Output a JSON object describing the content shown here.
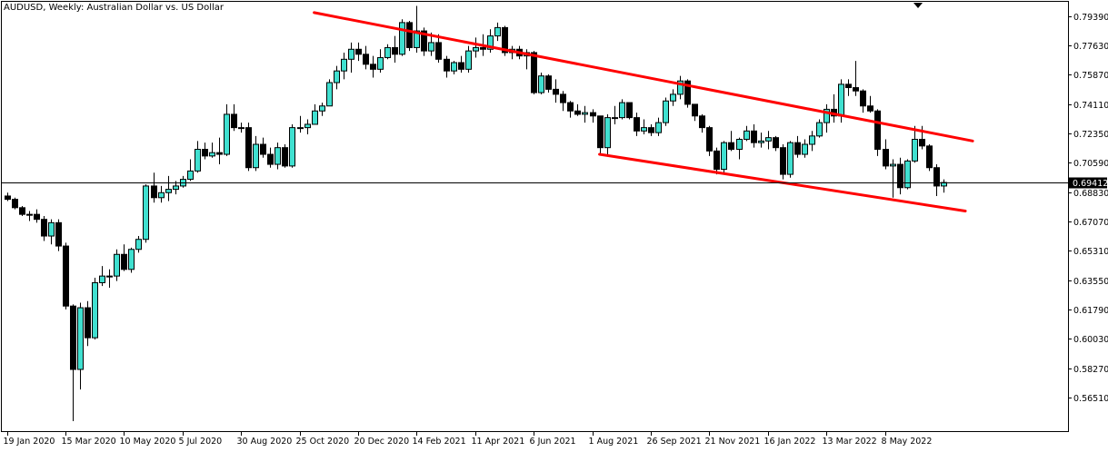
{
  "title": "AUDUSD, Weekly:  Australian Dollar vs. US Dollar",
  "current_price_label": "0.69412",
  "colors": {
    "bull_fill": "#40E0D0",
    "bear_fill": "#000000",
    "candle_outline": "#000000",
    "trendline": "#FF0000",
    "background": "#FFFFFF",
    "axis": "#000000"
  },
  "chart_data": {
    "type": "candlestick",
    "title": "AUDUSD, Weekly:  Australian Dollar vs. US Dollar",
    "xlabel": "",
    "ylabel": "",
    "ylim": [
      0.545,
      0.803
    ],
    "y_ticks": [
      "0.79390",
      "0.77630",
      "0.75870",
      "0.74110",
      "0.72350",
      "0.70590",
      "0.68830",
      "0.67070",
      "0.65310",
      "0.63550",
      "0.61790",
      "0.60030",
      "0.58270",
      "0.56510"
    ],
    "x_tick_labels": [
      {
        "label": "19 Jan 2020",
        "week": 0
      },
      {
        "label": "15 Mar 2020",
        "week": 8
      },
      {
        "label": "10 May 2020",
        "week": 16
      },
      {
        "label": "5 Jul 2020",
        "week": 24
      },
      {
        "label": "30 Aug 2020",
        "week": 32
      },
      {
        "label": "25 Oct 2020",
        "week": 40
      },
      {
        "label": "20 Dec 2020",
        "week": 48
      },
      {
        "label": "14 Feb 2021",
        "week": 56
      },
      {
        "label": "11 Apr 2021",
        "week": 64
      },
      {
        "label": "6 Jun 2021",
        "week": 72
      },
      {
        "label": "1 Aug 2021",
        "week": 80
      },
      {
        "label": "26 Sep 2021",
        "week": 88
      },
      {
        "label": "21 Nov 2021",
        "week": 96
      },
      {
        "label": "16 Jan 2022",
        "week": 104
      },
      {
        "label": "13 Mar 2022",
        "week": 112
      },
      {
        "label": "8 May 2022",
        "week": 120
      }
    ],
    "current_price": 0.69412,
    "ohlc": [
      [
        0.686,
        0.688,
        0.683,
        0.684
      ],
      [
        0.684,
        0.685,
        0.678,
        0.679
      ],
      [
        0.679,
        0.68,
        0.674,
        0.675
      ],
      [
        0.675,
        0.677,
        0.671,
        0.675
      ],
      [
        0.675,
        0.678,
        0.67,
        0.672
      ],
      [
        0.672,
        0.674,
        0.659,
        0.662
      ],
      [
        0.662,
        0.672,
        0.657,
        0.67
      ],
      [
        0.67,
        0.672,
        0.653,
        0.656
      ],
      [
        0.656,
        0.658,
        0.618,
        0.62
      ],
      [
        0.62,
        0.621,
        0.551,
        0.582
      ],
      [
        0.582,
        0.622,
        0.57,
        0.619
      ],
      [
        0.619,
        0.623,
        0.596,
        0.601
      ],
      [
        0.601,
        0.637,
        0.6,
        0.634
      ],
      [
        0.634,
        0.644,
        0.632,
        0.638
      ],
      [
        0.638,
        0.642,
        0.631,
        0.638
      ],
      [
        0.638,
        0.654,
        0.635,
        0.651
      ],
      [
        0.651,
        0.657,
        0.641,
        0.642
      ],
      [
        0.642,
        0.655,
        0.64,
        0.654
      ],
      [
        0.654,
        0.662,
        0.652,
        0.66
      ],
      [
        0.66,
        0.693,
        0.658,
        0.692
      ],
      [
        0.692,
        0.7,
        0.682,
        0.685
      ],
      [
        0.685,
        0.692,
        0.682,
        0.688
      ],
      [
        0.688,
        0.698,
        0.683,
        0.69
      ],
      [
        0.69,
        0.695,
        0.687,
        0.692
      ],
      [
        0.692,
        0.698,
        0.691,
        0.696
      ],
      [
        0.696,
        0.708,
        0.695,
        0.701
      ],
      [
        0.701,
        0.719,
        0.7,
        0.714
      ],
      [
        0.714,
        0.718,
        0.708,
        0.71
      ],
      [
        0.71,
        0.718,
        0.709,
        0.712
      ],
      [
        0.712,
        0.721,
        0.705,
        0.711
      ],
      [
        0.711,
        0.741,
        0.71,
        0.735
      ],
      [
        0.735,
        0.741,
        0.725,
        0.727
      ],
      [
        0.727,
        0.73,
        0.724,
        0.727
      ],
      [
        0.727,
        0.73,
        0.701,
        0.703
      ],
      [
        0.703,
        0.722,
        0.701,
        0.717
      ],
      [
        0.717,
        0.721,
        0.709,
        0.711
      ],
      [
        0.711,
        0.715,
        0.703,
        0.705
      ],
      [
        0.705,
        0.718,
        0.702,
        0.715
      ],
      [
        0.715,
        0.717,
        0.703,
        0.704
      ],
      [
        0.704,
        0.729,
        0.703,
        0.727
      ],
      [
        0.727,
        0.734,
        0.724,
        0.727
      ],
      [
        0.727,
        0.732,
        0.723,
        0.729
      ],
      [
        0.729,
        0.741,
        0.729,
        0.737
      ],
      [
        0.737,
        0.742,
        0.734,
        0.74
      ],
      [
        0.74,
        0.756,
        0.74,
        0.754
      ],
      [
        0.754,
        0.764,
        0.75,
        0.761
      ],
      [
        0.761,
        0.772,
        0.756,
        0.768
      ],
      [
        0.768,
        0.778,
        0.76,
        0.774
      ],
      [
        0.774,
        0.778,
        0.767,
        0.771
      ],
      [
        0.771,
        0.776,
        0.762,
        0.765
      ],
      [
        0.765,
        0.77,
        0.757,
        0.762
      ],
      [
        0.762,
        0.774,
        0.76,
        0.769
      ],
      [
        0.769,
        0.777,
        0.768,
        0.775
      ],
      [
        0.775,
        0.782,
        0.766,
        0.771
      ],
      [
        0.771,
        0.792,
        0.77,
        0.79
      ],
      [
        0.79,
        0.791,
        0.773,
        0.775
      ],
      [
        0.775,
        0.8,
        0.772,
        0.785
      ],
      [
        0.785,
        0.787,
        0.77,
        0.773
      ],
      [
        0.773,
        0.784,
        0.77,
        0.778
      ],
      [
        0.778,
        0.783,
        0.766,
        0.768
      ],
      [
        0.768,
        0.77,
        0.757,
        0.761
      ],
      [
        0.761,
        0.767,
        0.759,
        0.766
      ],
      [
        0.766,
        0.77,
        0.76,
        0.762
      ],
      [
        0.762,
        0.776,
        0.76,
        0.773
      ],
      [
        0.773,
        0.781,
        0.769,
        0.775
      ],
      [
        0.775,
        0.783,
        0.77,
        0.774
      ],
      [
        0.774,
        0.786,
        0.772,
        0.782
      ],
      [
        0.782,
        0.79,
        0.779,
        0.787
      ],
      [
        0.787,
        0.788,
        0.77,
        0.772
      ],
      [
        0.772,
        0.776,
        0.768,
        0.774
      ],
      [
        0.774,
        0.776,
        0.768,
        0.77
      ],
      [
        0.77,
        0.774,
        0.762,
        0.772
      ],
      [
        0.772,
        0.773,
        0.747,
        0.748
      ],
      [
        0.748,
        0.76,
        0.747,
        0.758
      ],
      [
        0.758,
        0.759,
        0.748,
        0.75
      ],
      [
        0.75,
        0.756,
        0.742,
        0.747
      ],
      [
        0.747,
        0.749,
        0.737,
        0.742
      ],
      [
        0.742,
        0.743,
        0.733,
        0.737
      ],
      [
        0.737,
        0.741,
        0.734,
        0.735
      ],
      [
        0.735,
        0.74,
        0.73,
        0.736
      ],
      [
        0.736,
        0.738,
        0.73,
        0.734
      ],
      [
        0.734,
        0.734,
        0.711,
        0.715
      ],
      [
        0.715,
        0.735,
        0.711,
        0.733
      ],
      [
        0.733,
        0.74,
        0.729,
        0.733
      ],
      [
        0.733,
        0.744,
        0.732,
        0.742
      ],
      [
        0.742,
        0.742,
        0.732,
        0.733
      ],
      [
        0.733,
        0.736,
        0.722,
        0.725
      ],
      [
        0.725,
        0.732,
        0.723,
        0.727
      ],
      [
        0.727,
        0.729,
        0.722,
        0.724
      ],
      [
        0.724,
        0.733,
        0.722,
        0.73
      ],
      [
        0.73,
        0.745,
        0.728,
        0.743
      ],
      [
        0.743,
        0.75,
        0.74,
        0.747
      ],
      [
        0.747,
        0.758,
        0.744,
        0.755
      ],
      [
        0.755,
        0.756,
        0.739,
        0.741
      ],
      [
        0.741,
        0.741,
        0.731,
        0.734
      ],
      [
        0.734,
        0.735,
        0.724,
        0.727
      ],
      [
        0.727,
        0.728,
        0.71,
        0.713
      ],
      [
        0.713,
        0.715,
        0.699,
        0.702
      ],
      [
        0.702,
        0.719,
        0.7,
        0.718
      ],
      [
        0.718,
        0.725,
        0.713,
        0.714
      ],
      [
        0.714,
        0.721,
        0.708,
        0.72
      ],
      [
        0.72,
        0.728,
        0.719,
        0.725
      ],
      [
        0.725,
        0.729,
        0.715,
        0.718
      ],
      [
        0.718,
        0.724,
        0.715,
        0.719
      ],
      [
        0.719,
        0.725,
        0.714,
        0.721
      ],
      [
        0.721,
        0.722,
        0.713,
        0.715
      ],
      [
        0.715,
        0.717,
        0.696,
        0.699
      ],
      [
        0.699,
        0.719,
        0.697,
        0.718
      ],
      [
        0.718,
        0.722,
        0.709,
        0.711
      ],
      [
        0.711,
        0.72,
        0.709,
        0.717
      ],
      [
        0.717,
        0.725,
        0.713,
        0.722
      ],
      [
        0.722,
        0.732,
        0.721,
        0.73
      ],
      [
        0.73,
        0.741,
        0.724,
        0.738
      ],
      [
        0.738,
        0.747,
        0.73,
        0.734
      ],
      [
        0.734,
        0.756,
        0.73,
        0.753
      ],
      [
        0.753,
        0.756,
        0.746,
        0.751
      ],
      [
        0.751,
        0.767,
        0.746,
        0.749
      ],
      [
        0.749,
        0.75,
        0.736,
        0.74
      ],
      [
        0.74,
        0.746,
        0.736,
        0.737
      ],
      [
        0.737,
        0.738,
        0.71,
        0.714
      ],
      [
        0.714,
        0.72,
        0.702,
        0.704
      ],
      [
        0.704,
        0.708,
        0.685,
        0.705
      ],
      [
        0.705,
        0.709,
        0.687,
        0.691
      ],
      [
        0.691,
        0.708,
        0.69,
        0.707
      ],
      [
        0.707,
        0.728,
        0.706,
        0.72
      ],
      [
        0.72,
        0.728,
        0.714,
        0.716
      ],
      [
        0.716,
        0.717,
        0.701,
        0.703
      ],
      [
        0.703,
        0.705,
        0.686,
        0.692
      ],
      [
        0.692,
        0.696,
        0.688,
        0.6941
      ]
    ],
    "trendlines": [
      {
        "points": [
          [
            42,
            0.796
          ],
          [
            132,
            0.719
          ]
        ]
      },
      {
        "points": [
          [
            81,
            0.711
          ],
          [
            131,
            0.677
          ]
        ]
      }
    ]
  }
}
